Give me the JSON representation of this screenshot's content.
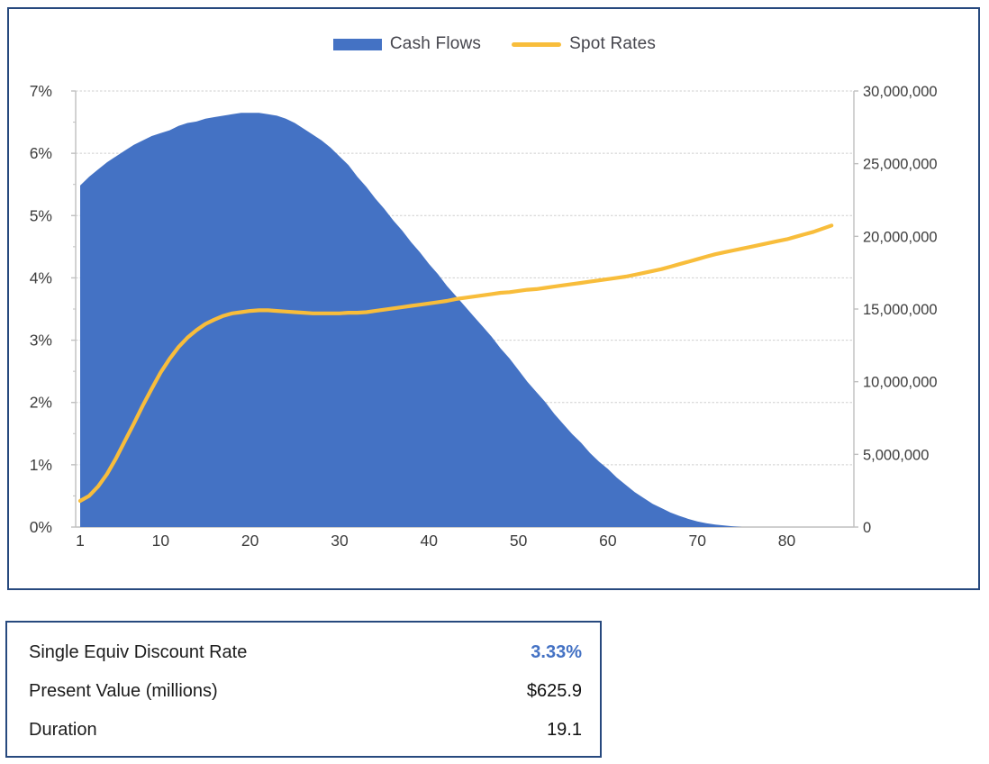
{
  "colors": {
    "cash_flows_blue": "#4472C4",
    "spot_rates_gold": "#F8BD3B",
    "frame_navy": "#27497E",
    "gridline": "#CFCFCF",
    "axis_line": "#BFBFBF",
    "axis_text": "#3D3D3D",
    "accent_value": "#4472C4"
  },
  "chart_data": {
    "type": "combo",
    "subtype": "area+line",
    "grid": "horizontal",
    "legend_position": "top",
    "x_axis": {
      "min": 0.5,
      "max": 87.5,
      "ticks": [
        1,
        10,
        20,
        30,
        40,
        50,
        60,
        70,
        80
      ]
    },
    "left_axis": {
      "min": 0,
      "max": 7,
      "tick_values": [
        0,
        1,
        2,
        3,
        4,
        5,
        6,
        7
      ],
      "ticks": [
        "0%",
        "1%",
        "2%",
        "3%",
        "4%",
        "5%",
        "6%",
        "7%"
      ],
      "minor_tick_values": [
        0.5,
        1.5,
        2.5,
        3.5,
        4.5,
        5.5,
        6.5
      ]
    },
    "right_axis": {
      "min": 0,
      "max": 30000000,
      "tick_values": [
        0,
        5000000,
        10000000,
        15000000,
        20000000,
        25000000,
        30000000
      ],
      "ticks": [
        "0",
        "5,000,000",
        "10,000,000",
        "15,000,000",
        "20,000,000",
        "25,000,000",
        "30,000,000"
      ]
    },
    "series": [
      {
        "name": "Cash Flows",
        "type": "area",
        "axis": "right",
        "color": "#4472C4",
        "x_first": 1,
        "x_step": 1,
        "values_millions": [
          23.5,
          24.1,
          24.6,
          25.1,
          25.5,
          25.9,
          26.3,
          26.6,
          26.9,
          27.1,
          27.3,
          27.6,
          27.8,
          27.9,
          28.1,
          28.2,
          28.3,
          28.4,
          28.5,
          28.5,
          28.5,
          28.4,
          28.3,
          28.1,
          27.8,
          27.4,
          27.0,
          26.6,
          26.1,
          25.5,
          24.9,
          24.1,
          23.4,
          22.6,
          21.9,
          21.1,
          20.4,
          19.6,
          18.9,
          18.1,
          17.4,
          16.6,
          15.9,
          15.2,
          14.5,
          13.8,
          13.1,
          12.3,
          11.6,
          10.8,
          10.0,
          9.3,
          8.6,
          7.8,
          7.1,
          6.4,
          5.8,
          5.1,
          4.5,
          4.0,
          3.4,
          2.9,
          2.4,
          2.0,
          1.6,
          1.3,
          1.0,
          0.77,
          0.56,
          0.39,
          0.26,
          0.17,
          0.11,
          0.05,
          0.0
        ]
      },
      {
        "name": "Spot Rates",
        "type": "line",
        "axis": "left",
        "color": "#F8BD3B",
        "x_first": 1,
        "x_step": 1,
        "values_percent": [
          0.42,
          0.5,
          0.65,
          0.85,
          1.1,
          1.38,
          1.66,
          1.95,
          2.22,
          2.48,
          2.7,
          2.89,
          3.04,
          3.16,
          3.26,
          3.33,
          3.39,
          3.43,
          3.45,
          3.47,
          3.48,
          3.48,
          3.47,
          3.46,
          3.45,
          3.44,
          3.43,
          3.43,
          3.43,
          3.43,
          3.44,
          3.44,
          3.45,
          3.47,
          3.49,
          3.51,
          3.53,
          3.55,
          3.57,
          3.59,
          3.61,
          3.63,
          3.66,
          3.68,
          3.7,
          3.72,
          3.74,
          3.76,
          3.77,
          3.79,
          3.81,
          3.82,
          3.84,
          3.86,
          3.88,
          3.9,
          3.92,
          3.94,
          3.96,
          3.98,
          4.0,
          4.02,
          4.05,
          4.08,
          4.11,
          4.14,
          4.18,
          4.22,
          4.26,
          4.3,
          4.34,
          4.38,
          4.41,
          4.44,
          4.47,
          4.5,
          4.53,
          4.56,
          4.59,
          4.62,
          4.66,
          4.7,
          4.74,
          4.79,
          4.84
        ]
      }
    ]
  },
  "summary_table": {
    "rows": [
      {
        "label": "Single Equiv Discount Rate",
        "value": "3.33%"
      },
      {
        "label": "Present Value (millions)",
        "value": "$625.9"
      },
      {
        "label": "Duration",
        "value": "19.1"
      }
    ]
  }
}
